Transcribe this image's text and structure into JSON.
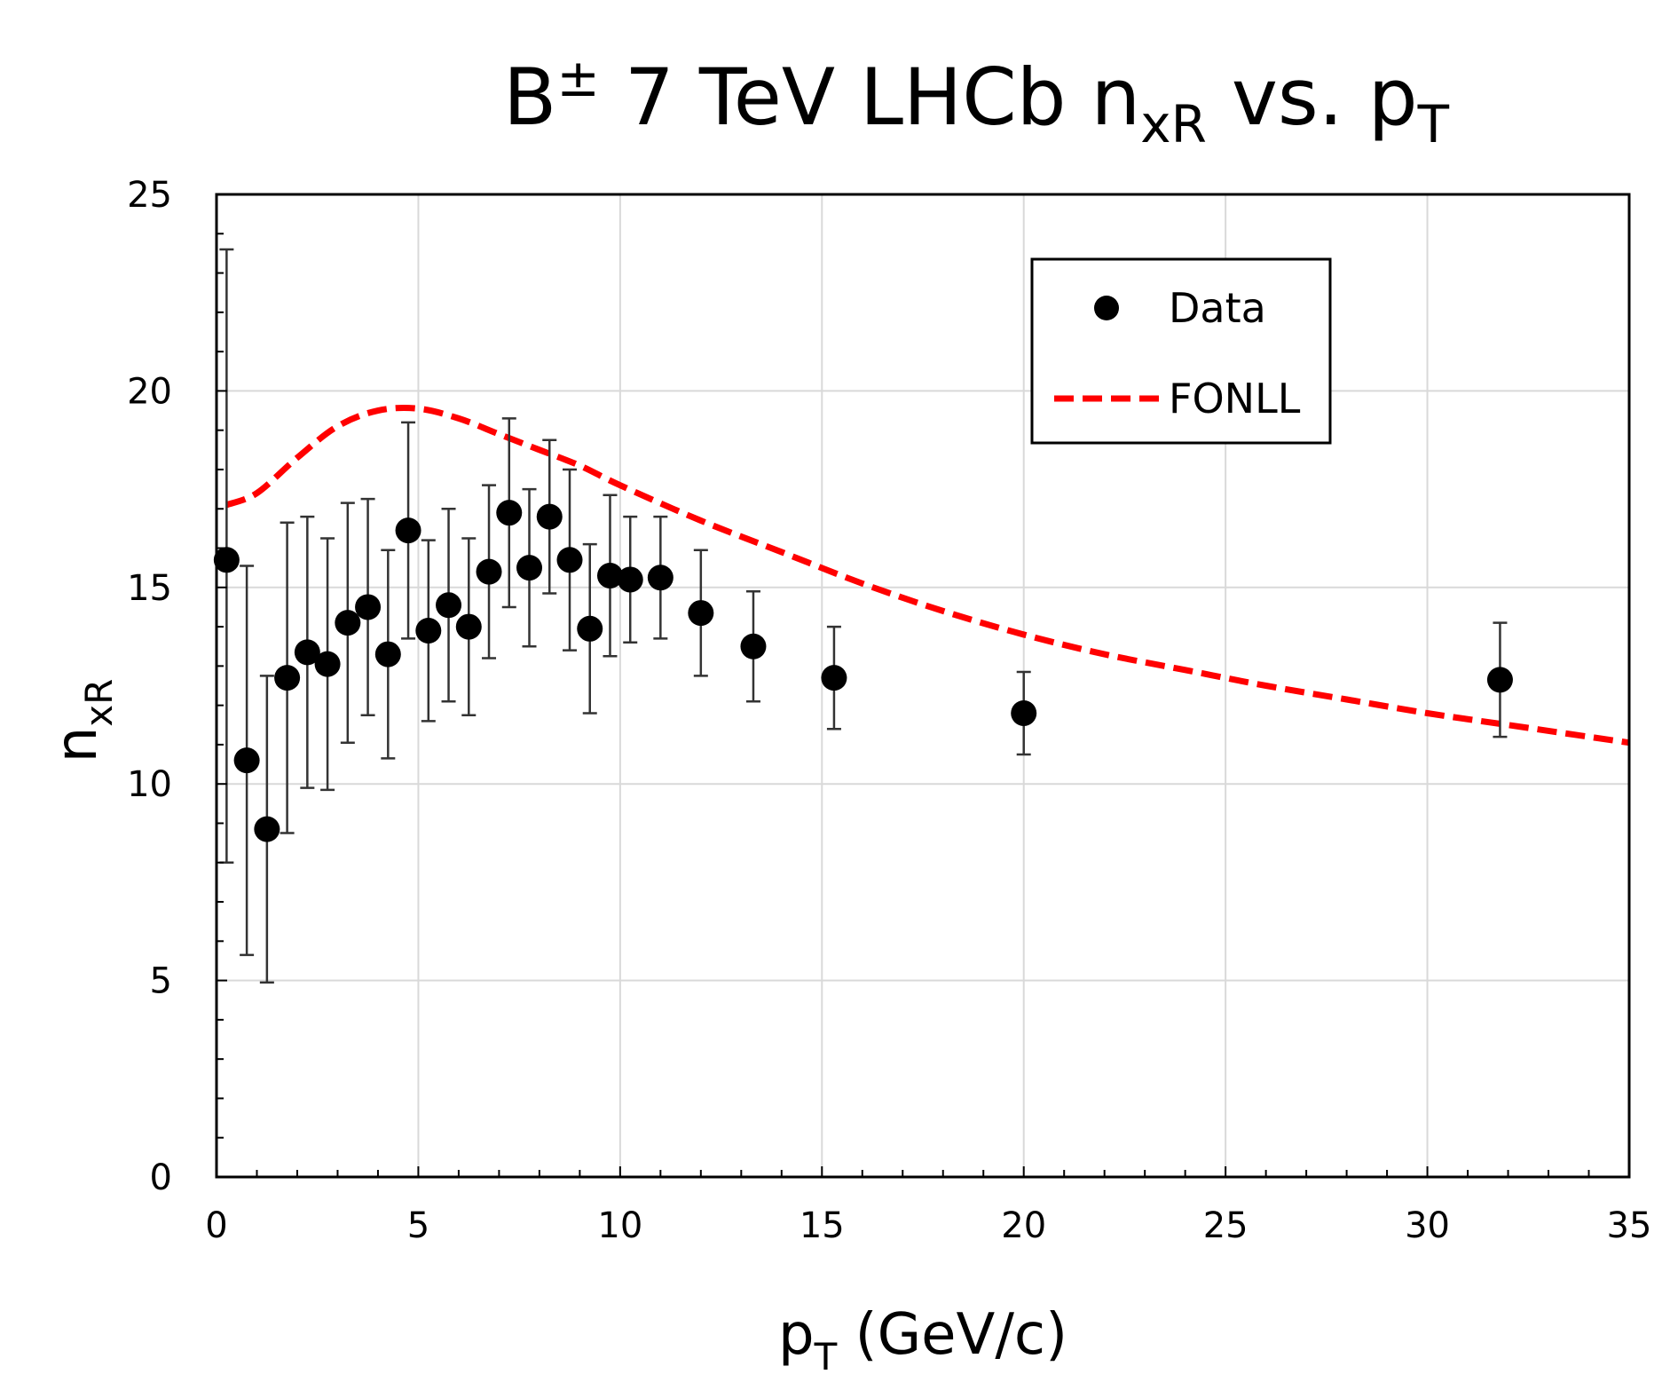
{
  "chart_data": {
    "type": "scatter",
    "title": {
      "prefix": "B",
      "superscript": "±",
      "middle": " 7 TeV LHCb n",
      "subscript_1": "xR",
      "suffix": " vs. p",
      "subscript_2": "T"
    },
    "xlabel": {
      "main": "p",
      "subscript": "T",
      "units": " (GeV/c)"
    },
    "ylabel": {
      "main": "n",
      "subscript": "xR"
    },
    "xlim": [
      0,
      35
    ],
    "ylim": [
      0,
      25
    ],
    "xticks": [
      0,
      5,
      10,
      15,
      20,
      25,
      30,
      35
    ],
    "yticks": [
      0,
      5,
      10,
      15,
      20,
      25
    ],
    "x_minor_step": 1,
    "y_minor_step": 1,
    "grid": true,
    "legend_position": "top-right",
    "legend": [
      {
        "label": "Data",
        "marker": "circle",
        "color": "#000000"
      },
      {
        "label": "FONLL",
        "marker": "dashed-line",
        "color": "#ff0000"
      }
    ],
    "series": [
      {
        "name": "Data",
        "kind": "points-with-error-bars",
        "color": "#000000",
        "points": [
          {
            "x": 0.25,
            "y": 15.7,
            "err_low": 7.7,
            "err_high": 7.9
          },
          {
            "x": 0.75,
            "y": 10.6,
            "err_low": 4.95,
            "err_high": 4.95
          },
          {
            "x": 1.25,
            "y": 8.85,
            "err_low": 3.9,
            "err_high": 3.9
          },
          {
            "x": 1.75,
            "y": 12.7,
            "err_low": 3.95,
            "err_high": 3.95
          },
          {
            "x": 2.25,
            "y": 13.35,
            "err_low": 3.45,
            "err_high": 3.45
          },
          {
            "x": 2.75,
            "y": 13.05,
            "err_low": 3.2,
            "err_high": 3.2
          },
          {
            "x": 3.25,
            "y": 14.1,
            "err_low": 3.05,
            "err_high": 3.05
          },
          {
            "x": 3.75,
            "y": 14.5,
            "err_low": 2.75,
            "err_high": 2.75
          },
          {
            "x": 4.25,
            "y": 13.3,
            "err_low": 2.65,
            "err_high": 2.65
          },
          {
            "x": 4.75,
            "y": 16.45,
            "err_low": 2.75,
            "err_high": 2.75
          },
          {
            "x": 5.25,
            "y": 13.9,
            "err_low": 2.3,
            "err_high": 2.3
          },
          {
            "x": 5.75,
            "y": 14.55,
            "err_low": 2.45,
            "err_high": 2.45
          },
          {
            "x": 6.25,
            "y": 14.0,
            "err_low": 2.25,
            "err_high": 2.25
          },
          {
            "x": 6.75,
            "y": 15.4,
            "err_low": 2.2,
            "err_high": 2.2
          },
          {
            "x": 7.25,
            "y": 16.9,
            "err_low": 2.4,
            "err_high": 2.4
          },
          {
            "x": 7.75,
            "y": 15.5,
            "err_low": 2.0,
            "err_high": 2.0
          },
          {
            "x": 8.25,
            "y": 16.8,
            "err_low": 1.95,
            "err_high": 1.95
          },
          {
            "x": 8.75,
            "y": 15.7,
            "err_low": 2.3,
            "err_high": 2.3
          },
          {
            "x": 9.25,
            "y": 13.95,
            "err_low": 2.15,
            "err_high": 2.15
          },
          {
            "x": 9.75,
            "y": 15.3,
            "err_low": 2.05,
            "err_high": 2.05
          },
          {
            "x": 10.25,
            "y": 15.2,
            "err_low": 1.6,
            "err_high": 1.6
          },
          {
            "x": 11.0,
            "y": 15.25,
            "err_low": 1.55,
            "err_high": 1.55
          },
          {
            "x": 12.0,
            "y": 14.35,
            "err_low": 1.6,
            "err_high": 1.6
          },
          {
            "x": 13.3,
            "y": 13.5,
            "err_low": 1.4,
            "err_high": 1.4
          },
          {
            "x": 15.3,
            "y": 12.7,
            "err_low": 1.3,
            "err_high": 1.3
          },
          {
            "x": 20.0,
            "y": 11.8,
            "err_low": 1.05,
            "err_high": 1.05
          },
          {
            "x": 31.8,
            "y": 12.65,
            "err_low": 1.45,
            "err_high": 1.45
          }
        ]
      },
      {
        "name": "FONLL",
        "kind": "dashed-line",
        "color": "#ff0000",
        "x": [
          0.25,
          1.0,
          2.0,
          3.0,
          4.0,
          5.0,
          6.0,
          7.0,
          8.0,
          9.0,
          10.0,
          12.0,
          14.0,
          16.0,
          18.0,
          20.0,
          22.0,
          24.0,
          26.0,
          28.0,
          30.0,
          32.0,
          35.0
        ],
        "y": [
          17.1,
          17.4,
          18.3,
          19.1,
          19.5,
          19.55,
          19.3,
          18.9,
          18.5,
          18.1,
          17.6,
          16.7,
          15.9,
          15.1,
          14.4,
          13.8,
          13.3,
          12.9,
          12.5,
          12.15,
          11.8,
          11.5,
          11.05
        ]
      }
    ]
  }
}
